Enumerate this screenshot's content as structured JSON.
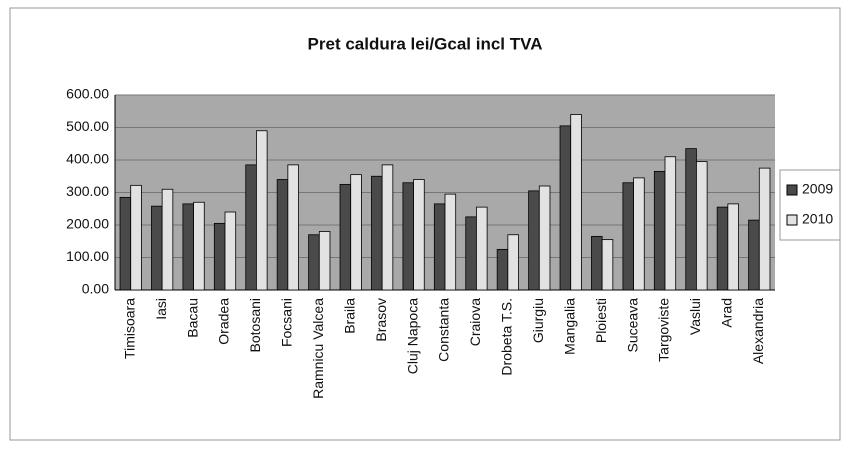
{
  "chart_data": {
    "type": "bar",
    "title": "Pret caldura lei/Gcal incl TVA",
    "categories": [
      "Timisoara",
      "Iasi",
      "Bacau",
      "Oradea",
      "Botosani",
      "Focsani",
      "Ramnicu Valcea",
      "Braila",
      "Brasov",
      "Cluj Napoca",
      "Constanta",
      "Craiova",
      "Drobeta T.S.",
      "Giurgiu",
      "Mangalia",
      "Ploiesti",
      "Suceava",
      "Targoviste",
      "Vaslui",
      "Arad",
      "Alexandria"
    ],
    "series": [
      {
        "name": "2009",
        "color": "#4a4a4a",
        "values": [
          285,
          258,
          265,
          205,
          385,
          340,
          170,
          325,
          350,
          330,
          265,
          225,
          125,
          305,
          505,
          165,
          330,
          365,
          435,
          255,
          215
        ]
      },
      {
        "name": "2010",
        "color": "#e2e2e2",
        "values": [
          322,
          310,
          270,
          240,
          490,
          385,
          180,
          355,
          385,
          340,
          295,
          255,
          170,
          320,
          540,
          155,
          345,
          410,
          395,
          265,
          375
        ]
      }
    ],
    "ylim": [
      0,
      600
    ],
    "yticks": [
      {
        "value": 0,
        "label": "0.00"
      },
      {
        "value": 100,
        "label": "100.00"
      },
      {
        "value": 200,
        "label": "200.00"
      },
      {
        "value": 300,
        "label": "300.00"
      },
      {
        "value": 400,
        "label": "400.00"
      },
      {
        "value": 500,
        "label": "500.00"
      },
      {
        "value": 600,
        "label": "600.00"
      }
    ],
    "grid": true,
    "legend": "right"
  }
}
